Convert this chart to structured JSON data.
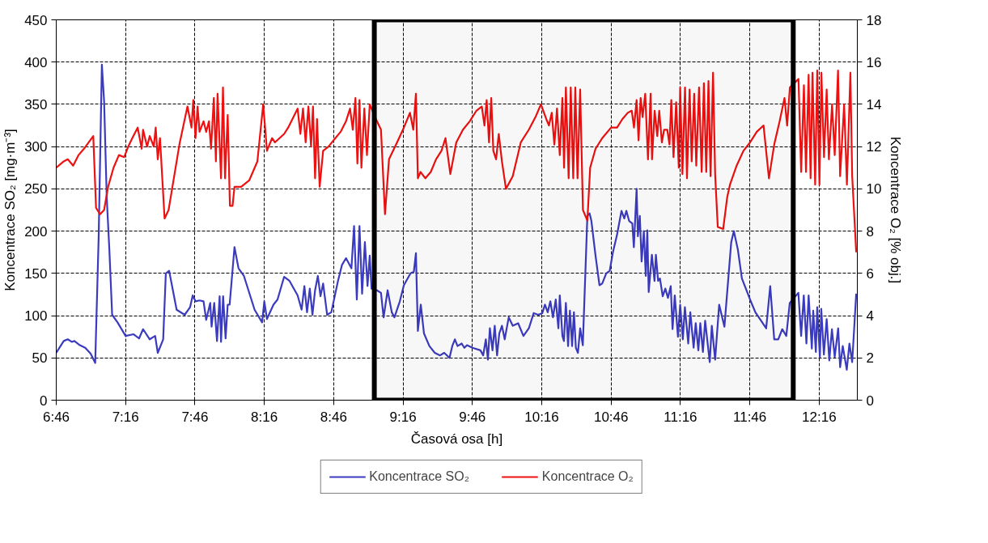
{
  "chart_data": {
    "type": "line",
    "xlabel": "Časová osa [h]",
    "ylabel": "Koncentrace SO₂ [mg·m⁻³]",
    "y2label": "Koncentrace O₂ [% obj.]",
    "xlim": [
      6.767,
      12.542
    ],
    "ylim": [
      0,
      450
    ],
    "y2lim": [
      0,
      18
    ],
    "xticks": [
      {
        "value": 6.767,
        "label": "6:46"
      },
      {
        "value": 7.267,
        "label": "7:16"
      },
      {
        "value": 7.767,
        "label": "7:46"
      },
      {
        "value": 8.267,
        "label": "8:16"
      },
      {
        "value": 8.767,
        "label": "8:46"
      },
      {
        "value": 9.267,
        "label": "9:16"
      },
      {
        "value": 9.767,
        "label": "9:46"
      },
      {
        "value": 10.267,
        "label": "10:16"
      },
      {
        "value": 10.767,
        "label": "10:46"
      },
      {
        "value": 11.267,
        "label": "11:16"
      },
      {
        "value": 11.767,
        "label": "11:46"
      },
      {
        "value": 12.267,
        "label": "12:16"
      }
    ],
    "yticks": [
      0,
      50,
      100,
      150,
      200,
      250,
      300,
      350,
      400,
      450
    ],
    "y2ticks": [
      0,
      2,
      4,
      6,
      8,
      10,
      12,
      14,
      16,
      18
    ],
    "grid": true,
    "legend": "bottom",
    "line_style": "solid",
    "marker": "none",
    "bands": [
      {
        "axis": "x",
        "from": 9.06,
        "to": 12.08,
        "color": "#000000"
      }
    ],
    "series": [
      {
        "name": "Koncentrace SO₂",
        "color": "#3b3bbf",
        "x": [
          6.767,
          6.821,
          6.85,
          6.879,
          6.898,
          6.937,
          6.976,
          7.015,
          7.048,
          7.073,
          7.096,
          7.112,
          7.131,
          7.15,
          7.17,
          7.209,
          7.267,
          7.325,
          7.364,
          7.393,
          7.441,
          7.48,
          7.499,
          7.538,
          7.557,
          7.581,
          7.635,
          7.693,
          7.732,
          7.751,
          7.771,
          7.8,
          7.829,
          7.848,
          7.877,
          7.887,
          7.906,
          7.926,
          7.945,
          7.955,
          7.97,
          7.988,
          8.003,
          8.017,
          8.052,
          8.081,
          8.12,
          8.197,
          8.251,
          8.267,
          8.286,
          8.333,
          8.362,
          8.41,
          8.449,
          8.507,
          8.536,
          8.556,
          8.575,
          8.595,
          8.614,
          8.633,
          8.653,
          8.672,
          8.691,
          8.72,
          8.75,
          8.798,
          8.827,
          8.856,
          8.895,
          8.914,
          8.934,
          8.953,
          8.972,
          8.992,
          9.011,
          9.027,
          9.04,
          9.079,
          9.108,
          9.127,
          9.156,
          9.186,
          9.205,
          9.244,
          9.273,
          9.321,
          9.345,
          9.36,
          9.374,
          9.395,
          9.418,
          9.457,
          9.496,
          9.534,
          9.564,
          9.602,
          9.622,
          9.641,
          9.66,
          9.69,
          9.709,
          9.728,
          9.767,
          9.825,
          9.845,
          9.864,
          9.879,
          9.893,
          9.912,
          9.928,
          9.945,
          9.961,
          9.98,
          10.0,
          10.029,
          10.058,
          10.097,
          10.135,
          10.174,
          10.209,
          10.242,
          10.271,
          10.29,
          10.31,
          10.329,
          10.348,
          10.368,
          10.387,
          10.397,
          10.416,
          10.427,
          10.441,
          10.457,
          10.47,
          10.486,
          10.499,
          10.513,
          10.528,
          10.544,
          10.563,
          10.596,
          10.612,
          10.625,
          10.654,
          10.683,
          10.703,
          10.732,
          10.757,
          10.78,
          10.809,
          10.842,
          10.862,
          10.877,
          10.897,
          10.92,
          10.931,
          10.951,
          10.96,
          10.974,
          10.987,
          11.003,
          11.017,
          11.028,
          11.038,
          11.061,
          11.08,
          11.09,
          11.106,
          11.119,
          11.139,
          11.158,
          11.177,
          11.197,
          11.21,
          11.226,
          11.249,
          11.265,
          11.284,
          11.299,
          11.323,
          11.338,
          11.362,
          11.377,
          11.396,
          11.41,
          11.429,
          11.445,
          11.478,
          11.493,
          11.517,
          11.546,
          11.584,
          11.633,
          11.652,
          11.681,
          11.71,
          11.769,
          11.807,
          11.885,
          11.914,
          11.943,
          11.972,
          12.001,
          12.03,
          12.055,
          12.117,
          12.137,
          12.156,
          12.175,
          12.191,
          12.214,
          12.224,
          12.243,
          12.253,
          12.272,
          12.282,
          12.301,
          12.321,
          12.34,
          12.359,
          12.379,
          12.404,
          12.418,
          12.437,
          12.466,
          12.485,
          12.505,
          12.534
        ],
        "values": [
          56,
          70,
          72,
          69,
          70,
          65,
          62,
          55,
          44,
          194,
          397,
          354,
          240,
          178,
          101,
          92,
          76,
          78,
          73,
          84,
          72,
          76,
          56,
          72,
          150,
          153,
          107,
          101,
          110,
          124,
          117,
          118,
          117,
          95,
          115,
          87,
          115,
          70,
          123,
          69,
          123,
          73,
          113,
          113,
          181,
          156,
          147,
          107,
          92,
          117,
          96,
          113,
          119,
          146,
          141,
          124,
          107,
          135,
          104,
          132,
          101,
          130,
          147,
          123,
          138,
          101,
          104,
          141,
          160,
          168,
          156,
          206,
          119,
          206,
          126,
          187,
          135,
          171,
          132,
          130,
          127,
          98,
          130,
          104,
          98,
          117,
          136,
          150,
          152,
          174,
          82,
          113,
          79,
          64,
          56,
          53,
          56,
          50,
          64,
          72,
          64,
          67,
          62,
          65,
          62,
          59,
          53,
          72,
          48,
          85,
          59,
          88,
          53,
          79,
          88,
          72,
          98,
          88,
          91,
          76,
          85,
          103,
          101,
          103,
          113,
          104,
          117,
          98,
          119,
          85,
          124,
          76,
          70,
          115,
          64,
          106,
          64,
          104,
          62,
          56,
          85,
          65,
          218,
          221,
          212,
          172,
          136,
          138,
          150,
          153,
          175,
          195,
          224,
          215,
          224,
          212,
          209,
          181,
          250,
          194,
          218,
          164,
          200,
          147,
          201,
          128,
          172,
          141,
          172,
          141,
          144,
          123,
          132,
          121,
          135,
          84,
          124,
          75,
          113,
          72,
          110,
          67,
          104,
          62,
          91,
          59,
          91,
          57,
          94,
          45,
          88,
          48,
          113,
          87,
          187,
          200,
          178,
          144,
          119,
          104,
          85,
          135,
          72,
          72,
          84,
          76,
          115,
          127,
          76,
          124,
          67,
          124,
          61,
          106,
          57,
          110,
          51,
          108,
          54,
          96,
          47,
          84,
          51,
          85,
          39,
          64,
          36,
          67,
          45,
          126
        ]
      },
      {
        "name": "Koncentrace O₂",
        "color": "#ee1111",
        "axis": "y2",
        "x": [
          6.767,
          6.821,
          6.85,
          6.889,
          6.928,
          6.967,
          7.034,
          7.054,
          7.083,
          7.112,
          7.141,
          7.18,
          7.219,
          7.257,
          7.286,
          7.315,
          7.354,
          7.383,
          7.393,
          7.422,
          7.441,
          7.47,
          7.484,
          7.499,
          7.515,
          7.548,
          7.577,
          7.655,
          7.713,
          7.742,
          7.755,
          7.771,
          7.786,
          7.8,
          7.829,
          7.848,
          7.868,
          7.883,
          7.903,
          7.918,
          7.93,
          7.955,
          7.969,
          7.984,
          8.003,
          8.019,
          8.038,
          8.052,
          8.1,
          8.158,
          8.217,
          8.259,
          8.286,
          8.323,
          8.343,
          8.41,
          8.439,
          8.507,
          8.527,
          8.546,
          8.565,
          8.585,
          8.604,
          8.618,
          8.633,
          8.647,
          8.666,
          8.691,
          8.73,
          8.779,
          8.817,
          8.856,
          8.885,
          8.905,
          8.924,
          8.938,
          8.953,
          8.967,
          8.988,
          9.007,
          9.027,
          9.079,
          9.108,
          9.137,
          9.166,
          9.224,
          9.273,
          9.317,
          9.341,
          9.36,
          9.374,
          9.393,
          9.428,
          9.467,
          9.505,
          9.544,
          9.573,
          9.608,
          9.651,
          9.699,
          9.748,
          9.796,
          9.835,
          9.854,
          9.87,
          9.887,
          9.903,
          9.918,
          9.938,
          9.957,
          9.98,
          10.009,
          10.058,
          10.116,
          10.174,
          10.222,
          10.261,
          10.3,
          10.319,
          10.339,
          10.358,
          10.377,
          10.397,
          10.416,
          10.428,
          10.441,
          10.461,
          10.476,
          10.494,
          10.509,
          10.525,
          10.544,
          10.564,
          10.596,
          10.616,
          10.655,
          10.703,
          10.767,
          10.81,
          10.848,
          10.887,
          10.916,
          10.932,
          10.951,
          10.965,
          10.98,
          10.994,
          11.013,
          11.033,
          11.052,
          11.062,
          11.081,
          11.1,
          11.114,
          11.133,
          11.149,
          11.172,
          11.188,
          11.201,
          11.217,
          11.236,
          11.255,
          11.265,
          11.281,
          11.3,
          11.314,
          11.333,
          11.348,
          11.366,
          11.381,
          11.401,
          11.42,
          11.436,
          11.453,
          11.469,
          11.484,
          11.502,
          11.517,
          11.536,
          11.575,
          11.604,
          11.624,
          11.672,
          11.721,
          11.769,
          11.817,
          11.866,
          11.905,
          11.943,
          11.982,
          12.017,
          12.036,
          12.056,
          12.118,
          12.137,
          12.157,
          12.172,
          12.191,
          12.205,
          12.219,
          12.238,
          12.253,
          12.269,
          12.283,
          12.302,
          12.321,
          12.337,
          12.36,
          12.379,
          12.403,
          12.418,
          12.447,
          12.467,
          12.492,
          12.505,
          12.534
        ],
        "values": [
          11.0,
          11.3,
          11.4,
          11.1,
          11.6,
          11.9,
          12.5,
          9.1,
          8.8,
          9.0,
          10.1,
          11.0,
          11.6,
          11.5,
          12.0,
          12.4,
          12.9,
          11.9,
          12.8,
          12.0,
          12.5,
          12.0,
          12.9,
          11.4,
          12.4,
          8.6,
          9.0,
          12.1,
          13.9,
          12.9,
          14.2,
          12.4,
          13.9,
          12.7,
          13.2,
          12.7,
          13.2,
          11.9,
          14.3,
          11.3,
          14.5,
          10.5,
          14.8,
          10.5,
          13.5,
          9.2,
          9.2,
          10.1,
          10.1,
          10.4,
          11.3,
          14.0,
          11.8,
          12.4,
          12.2,
          12.6,
          12.9,
          13.8,
          12.6,
          13.8,
          12.2,
          13.9,
          12.0,
          13.9,
          10.5,
          13.3,
          10.1,
          11.8,
          12.0,
          12.4,
          12.7,
          13.2,
          13.8,
          12.8,
          14.3,
          11.2,
          14.2,
          11.0,
          13.8,
          11.6,
          14.0,
          13.2,
          12.8,
          8.8,
          11.4,
          12.2,
          12.9,
          13.6,
          12.8,
          14.5,
          10.5,
          10.8,
          10.5,
          10.8,
          11.4,
          11.8,
          12.4,
          10.7,
          12.2,
          12.8,
          13.2,
          13.7,
          13.9,
          13.0,
          14.2,
          12.2,
          14.3,
          11.8,
          11.4,
          12.6,
          11.3,
          10.0,
          10.6,
          12.2,
          12.8,
          13.4,
          14.0,
          13.3,
          13.0,
          13.6,
          12.1,
          13.8,
          11.6,
          14.3,
          11.0,
          14.8,
          10.5,
          14.8,
          10.5,
          14.8,
          10.5,
          14.7,
          9.0,
          8.5,
          11.0,
          11.9,
          12.4,
          12.9,
          12.9,
          13.3,
          13.6,
          13.7,
          12.9,
          14.2,
          12.3,
          14.3,
          13.4,
          14.5,
          11.4,
          14.5,
          11.4,
          13.7,
          12.5,
          13.7,
          12.2,
          12.8,
          12.8,
          12.1,
          14.2,
          11.5,
          14.1,
          11.0,
          14.8,
          10.7,
          14.8,
          10.5,
          14.7,
          11.3,
          14.5,
          11.1,
          14.8,
          10.8,
          15.0,
          10.8,
          15.1,
          10.6,
          15.5,
          10.7,
          8.2,
          8.1,
          9.6,
          10.2,
          11.1,
          11.8,
          12.2,
          12.7,
          13.0,
          10.5,
          12.1,
          13.2,
          14.3,
          13.0,
          14.8,
          15.2,
          10.8,
          14.9,
          10.8,
          15.4,
          10.5,
          15.5,
          10.2,
          15.6,
          10.2,
          15.5,
          11.5,
          14.7,
          11.4,
          14.0,
          11.6,
          15.6,
          10.6,
          14.0,
          10.2,
          15.5,
          10.6,
          7.0
        ]
      }
    ]
  }
}
